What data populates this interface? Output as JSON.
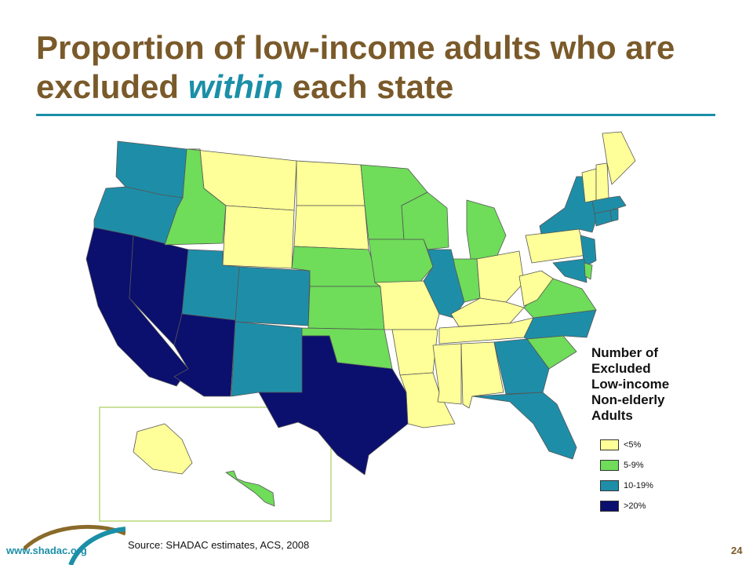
{
  "slide": {
    "title_part1": "Proportion of low-income adults who are excluded ",
    "title_highlight": "within",
    "title_part2": " each state",
    "source": "Source: SHADAC estimates, ACS, 2008",
    "footer_url": "www.shadac.org",
    "page_number": "24"
  },
  "colors": {
    "title": "#7a5a2a",
    "accent": "#1b8fa8",
    "cat_under5": "#ffff99",
    "cat_5to9": "#6fdc5a",
    "cat_10to19": "#1e8ea8",
    "cat_over20": "#0b0f6e"
  },
  "legend": {
    "title": "Number of\nExcluded\nLow-income\nNon-elderly\nAdults",
    "items": [
      {
        "label": "<5%",
        "color": "#ffff99"
      },
      {
        "label": "5-9%",
        "color": "#6fdc5a"
      },
      {
        "label": "10-19%",
        "color": "#1e8ea8"
      },
      {
        "label": ">20%",
        "color": "#0b0f6e"
      }
    ]
  },
  "map_data": {
    "categories": [
      "<5%",
      "5-9%",
      "10-19%",
      ">20%"
    ],
    "states": {
      "WA": "10-19%",
      "OR": "10-19%",
      "CA": ">20%",
      "NV": ">20%",
      "ID": "5-9%",
      "MT": "<5%",
      "WY": "<5%",
      "UT": "10-19%",
      "AZ": ">20%",
      "CO": "10-19%",
      "NM": "10-19%",
      "ND": "<5%",
      "SD": "<5%",
      "NE": "5-9%",
      "KS": "5-9%",
      "OK": "5-9%",
      "TX": ">20%",
      "MN": "5-9%",
      "IA": "5-9%",
      "MO": "<5%",
      "AR": "<5%",
      "LA": "<5%",
      "WI": "5-9%",
      "IL": "10-19%",
      "MI": "5-9%",
      "IN": "5-9%",
      "OH": "<5%",
      "KY": "<5%",
      "TN": "<5%",
      "MS": "<5%",
      "AL": "<5%",
      "GA": "10-19%",
      "FL": "10-19%",
      "SC": "5-9%",
      "NC": "10-19%",
      "VA": "5-9%",
      "WV": "<5%",
      "PA": "<5%",
      "NY": "10-19%",
      "NJ": "10-19%",
      "MD": "10-19%",
      "DE": "5-9%",
      "CT": "10-19%",
      "RI": "10-19%",
      "MA": "10-19%",
      "VT": "<5%",
      "NH": "<5%",
      "ME": "<5%",
      "AK": "<5%",
      "HI": "5-9%"
    }
  }
}
